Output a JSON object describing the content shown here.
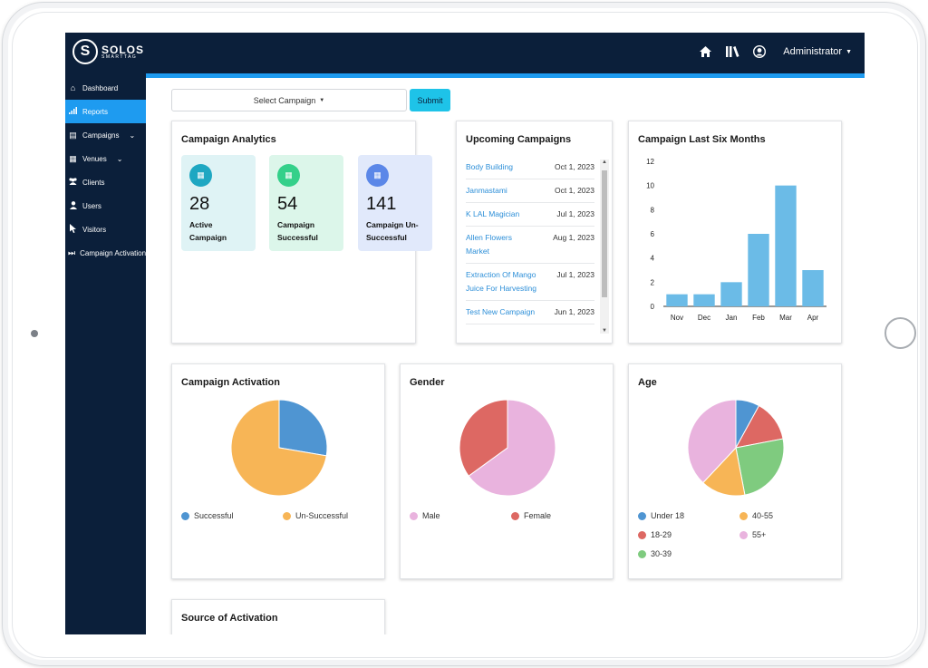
{
  "brand": {
    "name": "SOLOS",
    "tagline": "SMARTTAG",
    "mark": "S"
  },
  "header": {
    "user": "Administrator",
    "colors": {
      "bar": "#0b1f3a",
      "accent": "#1e9bf0"
    }
  },
  "sidebar": {
    "items": [
      {
        "label": "Dashboard",
        "icon": "home-icon"
      },
      {
        "label": "Reports",
        "icon": "bar-chart-icon",
        "active": true
      },
      {
        "label": "Campaigns",
        "icon": "table-icon",
        "expandable": true
      },
      {
        "label": "Venues",
        "icon": "grid-icon",
        "expandable": true
      },
      {
        "label": "Clients",
        "icon": "users-icon"
      },
      {
        "label": "Users",
        "icon": "user-icon"
      },
      {
        "label": "Visitors",
        "icon": "pointer-icon"
      },
      {
        "label": "Campaign Activation",
        "icon": "fast-forward-icon"
      }
    ]
  },
  "filter": {
    "select_label": "Select Campaign",
    "submit_label": "Submit"
  },
  "analytics": {
    "title": "Campaign Analytics",
    "stats": [
      {
        "value": "28",
        "label_line1": "Active",
        "label_line2": "Campaign",
        "bg": "#dff3f5",
        "icon_bg": "#1ea7c2"
      },
      {
        "value": "54",
        "label_line1": "Campaign",
        "label_line2": "Successful",
        "bg": "#dcf6ea",
        "icon_bg": "#34d08a"
      },
      {
        "value": "141",
        "label_line1": "Campaign Un-",
        "label_line2": "Successful",
        "bg": "#e1e9fb",
        "icon_bg": "#5b87e8"
      }
    ]
  },
  "upcoming": {
    "title": "Upcoming Campaigns",
    "rows": [
      {
        "name": "Body Building",
        "date": "Oct 1, 2023"
      },
      {
        "name": "Janmastami",
        "date": "Oct 1, 2023"
      },
      {
        "name": "K LAL Magician",
        "date": "Jul 1, 2023"
      },
      {
        "name": "Allen Flowers Market",
        "date": "Aug 1, 2023"
      },
      {
        "name": "Extraction Of Mango Juice For Harvesting",
        "date": "Jul 1, 2023"
      },
      {
        "name": "Test New Campaign",
        "date": "Jun 1, 2023"
      }
    ]
  },
  "charts": {
    "activation_title": "Campaign Activation",
    "gender_title": "Gender",
    "age_title": "Age",
    "source_title": "Source of Activation",
    "six_months_title": "Campaign Last Six Months"
  },
  "chart_data": [
    {
      "type": "bar",
      "title": "Campaign Last Six Months",
      "categories": [
        "Nov",
        "Dec",
        "Jan",
        "Feb",
        "Mar",
        "Apr"
      ],
      "values": [
        1,
        1,
        2,
        6,
        10,
        3
      ],
      "ylim": [
        0,
        12
      ],
      "yticks": [
        "0",
        "2",
        "4",
        "6",
        "8",
        "10",
        "12"
      ],
      "color": "#6bbbe7",
      "grid": false
    },
    {
      "type": "pie",
      "title": "Campaign Activation",
      "series": [
        {
          "name": "Successful",
          "value": 54,
          "color": "#4f95d2"
        },
        {
          "name": "Un-Successful",
          "value": 141,
          "color": "#f7b556"
        }
      ],
      "legend": "bottom"
    },
    {
      "type": "pie",
      "title": "Gender",
      "series": [
        {
          "name": "Male",
          "value": 65,
          "color": "#e9b3de"
        },
        {
          "name": "Female",
          "value": 35,
          "color": "#dd6863"
        }
      ],
      "legend": "bottom"
    },
    {
      "type": "pie",
      "title": "Age",
      "series": [
        {
          "name": "Under 18",
          "value": 8,
          "color": "#4f95d2"
        },
        {
          "name": "18-29",
          "value": 14,
          "color": "#dd6863"
        },
        {
          "name": "30-39",
          "value": 25,
          "color": "#7fcb7f"
        },
        {
          "name": "40-55",
          "value": 15,
          "color": "#f7b556"
        },
        {
          "name": "55+",
          "value": 38,
          "color": "#e9b3de"
        }
      ],
      "legend": "bottom"
    }
  ]
}
